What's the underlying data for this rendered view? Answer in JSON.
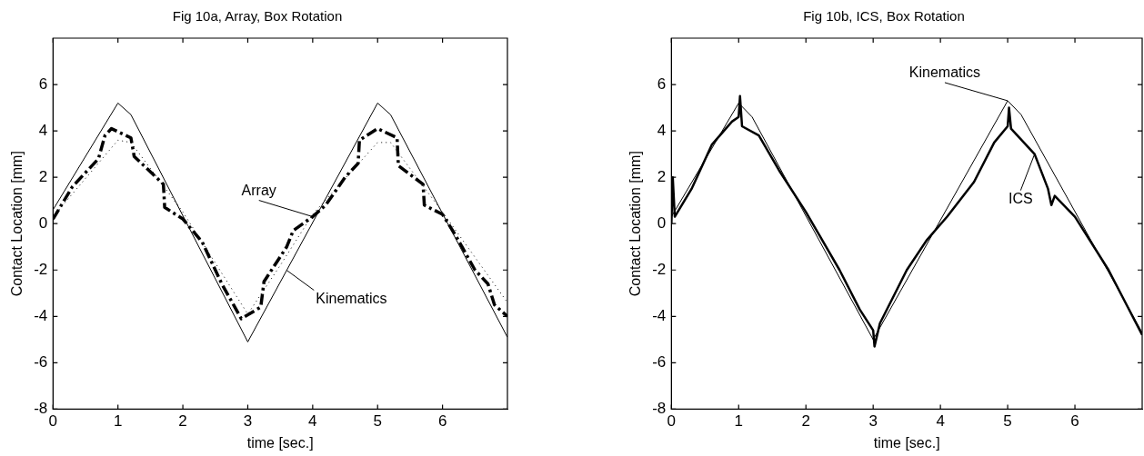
{
  "chart_data": [
    {
      "type": "line",
      "title": "Fig 10a, Array, Box Rotation",
      "xlabel": "time [sec.]",
      "ylabel": "Contact Location [mm]",
      "xlim": [
        0,
        7
      ],
      "xticks": [
        0,
        1,
        2,
        3,
        4,
        5,
        6
      ],
      "ylim": [
        -8,
        8
      ],
      "yticks": [
        -8,
        -6,
        -4,
        -2,
        0,
        2,
        4,
        6
      ],
      "grid": false,
      "legend": false,
      "marker": "none",
      "series": [
        {
          "name": "Kinematics",
          "color": "#000000",
          "line_style": "solid",
          "x": [
            0,
            1,
            1.2,
            3,
            5,
            5.2,
            7
          ],
          "values": [
            0.6,
            5.2,
            4.7,
            -5.1,
            5.2,
            4.7,
            -4.9
          ]
        },
        {
          "name": "Array",
          "color": "#000000",
          "line_style": "dashed",
          "x": [
            0,
            0.3,
            0.7,
            0.8,
            0.9,
            1.2,
            1.25,
            1.7,
            1.72,
            2,
            2.3,
            2.6,
            2.9,
            3.2,
            3.25,
            3.6,
            3.7,
            4,
            4.2,
            4.5,
            4.7,
            4.72,
            5,
            5.3,
            5.32,
            5.7,
            5.72,
            6,
            6.2,
            6.5,
            6.7,
            6.8,
            7
          ],
          "values": [
            0.2,
            1.6,
            2.8,
            3.8,
            4.1,
            3.7,
            2.9,
            1.7,
            0.7,
            0.2,
            -0.8,
            -2.6,
            -4.1,
            -3.6,
            -2.5,
            -1,
            -0.3,
            0.3,
            0.8,
            2,
            2.6,
            3.6,
            4.1,
            3.7,
            2.5,
            1.7,
            0.8,
            0.4,
            -0.5,
            -2,
            -2.6,
            -3.5,
            -4
          ]
        },
        {
          "color": "#000000",
          "line_style": "dotted",
          "x": [
            0,
            1,
            1.2,
            2,
            3,
            3.5,
            4,
            5,
            5.2,
            6,
            7
          ],
          "values": [
            0.3,
            3.6,
            3.5,
            0.5,
            -3.9,
            -1.8,
            0.4,
            3.5,
            3.5,
            0.5,
            -3.4
          ]
        }
      ]
    },
    {
      "type": "line",
      "title": "Fig 10b, ICS, Box Rotation",
      "xlabel": "time [sec.]",
      "ylabel": "Contact Location [mm]",
      "xlim": [
        0,
        7
      ],
      "xticks": [
        0,
        1,
        2,
        3,
        4,
        5,
        6
      ],
      "ylim": [
        -8,
        8
      ],
      "yticks": [
        -8,
        -6,
        -4,
        -2,
        0,
        2,
        4,
        6
      ],
      "grid": false,
      "legend": false,
      "marker": "none",
      "series": [
        {
          "name": "Kinematics",
          "color": "#000000",
          "line_style": "solid",
          "x": [
            0,
            1,
            1.2,
            3,
            5,
            5.2,
            7
          ],
          "values": [
            0.3,
            5.2,
            4.6,
            -5,
            5.3,
            4.7,
            -4.7
          ]
        },
        {
          "name": "ICS",
          "color": "#000000",
          "line_style": "solid",
          "x": [
            0,
            0.02,
            0.05,
            0.3,
            0.6,
            0.9,
            1,
            1.02,
            1.05,
            1.3,
            1.6,
            2,
            2.2,
            2.5,
            2.8,
            3,
            3.02,
            3.1,
            3.5,
            3.8,
            4.1,
            4.5,
            4.8,
            5,
            5.02,
            5.05,
            5.4,
            5.6,
            5.65,
            5.7,
            6,
            6.5,
            7
          ],
          "values": [
            0,
            2,
            0.3,
            1.5,
            3.4,
            4.4,
            4.6,
            5.5,
            4.2,
            3.8,
            2.3,
            0.5,
            -0.5,
            -2,
            -3.7,
            -4.6,
            -5.3,
            -4.3,
            -2,
            -0.7,
            0.3,
            1.8,
            3.5,
            4.2,
            5,
            4.1,
            3,
            1.5,
            0.8,
            1.2,
            0.3,
            -2,
            -4.8
          ]
        }
      ]
    }
  ]
}
